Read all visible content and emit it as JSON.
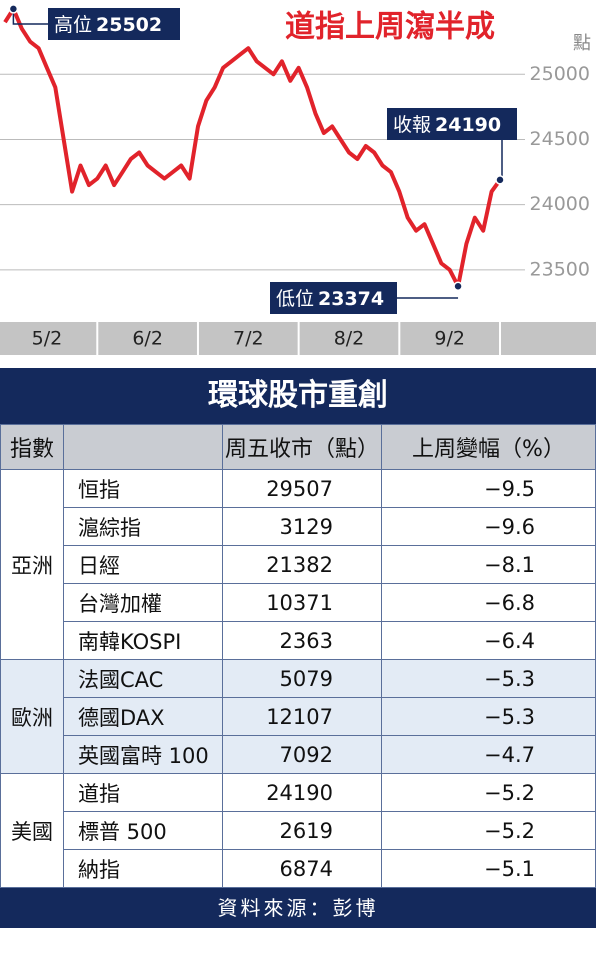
{
  "chart_data": {
    "type": "line",
    "title": "道指上周瀉半成",
    "unit": "點",
    "categories": [
      null,
      null,
      null,
      null,
      null,
      "5/2",
      null,
      null,
      null,
      null,
      null,
      null,
      null,
      null,
      null,
      null,
      null,
      "6/2",
      null,
      null,
      null,
      null,
      null,
      null,
      null,
      null,
      null,
      null,
      null,
      "7/2",
      null,
      null,
      null,
      null,
      null,
      null,
      null,
      null,
      null,
      null,
      null,
      "8/2",
      null,
      null,
      null,
      null,
      null,
      null,
      null,
      null,
      null,
      null,
      null,
      "9/2",
      null,
      null,
      null,
      null,
      null,
      null
    ],
    "series": [
      {
        "color": "#e1232b",
        "values": [
          25400,
          25502,
          25350,
          25250,
          25200,
          25050,
          24900,
          24500,
          24100,
          24300,
          24150,
          24200,
          24300,
          24150,
          24250,
          24350,
          24400,
          24300,
          24250,
          24200,
          24250,
          24300,
          24200,
          24600,
          24800,
          24900,
          25050,
          25100,
          25150,
          25200,
          25100,
          25050,
          25000,
          25100,
          24950,
          25050,
          24900,
          24700,
          24550,
          24600,
          24500,
          24400,
          24350,
          24450,
          24400,
          24300,
          24250,
          24100,
          23900,
          23800,
          23850,
          23700,
          23550,
          23500,
          23374,
          23700,
          23900,
          23800,
          24100,
          24190
        ]
      }
    ],
    "ylim": [
      23115,
      25570
    ],
    "yticks": [
      23500,
      24000,
      24500,
      25000
    ],
    "grid": true,
    "annotations": [
      {
        "label": "高位",
        "value": 25502
      },
      {
        "label": "收報",
        "value": 24190
      },
      {
        "label": "低位",
        "value": 23374
      }
    ]
  },
  "table": {
    "title": "環球股市重創",
    "header": [
      "指數",
      "周五收市（點）",
      "上周變幅（%）"
    ],
    "groups": [
      {
        "region": "亞洲",
        "rows": [
          [
            "恒指",
            29507,
            "−9.5"
          ],
          [
            "滬綜指",
            3129,
            "−9.6"
          ],
          [
            "日經",
            21382,
            "−8.1"
          ],
          [
            "台灣加權",
            10371,
            "−6.8"
          ],
          [
            "南韓KOSPI",
            2363,
            "−6.4"
          ]
        ]
      },
      {
        "region": "歐洲",
        "rows": [
          [
            "法國CAC",
            5079,
            "−5.3"
          ],
          [
            "德國DAX",
            12107,
            "−5.3"
          ],
          [
            "英國富時 100",
            7092,
            "−4.7"
          ]
        ]
      },
      {
        "region": "美國",
        "rows": [
          [
            "道指",
            24190,
            "−5.2"
          ],
          [
            "標普 500",
            2619,
            "−5.2"
          ],
          [
            "納指",
            6874,
            "−5.1"
          ]
        ]
      }
    ],
    "source": "資料來源：彭博"
  }
}
